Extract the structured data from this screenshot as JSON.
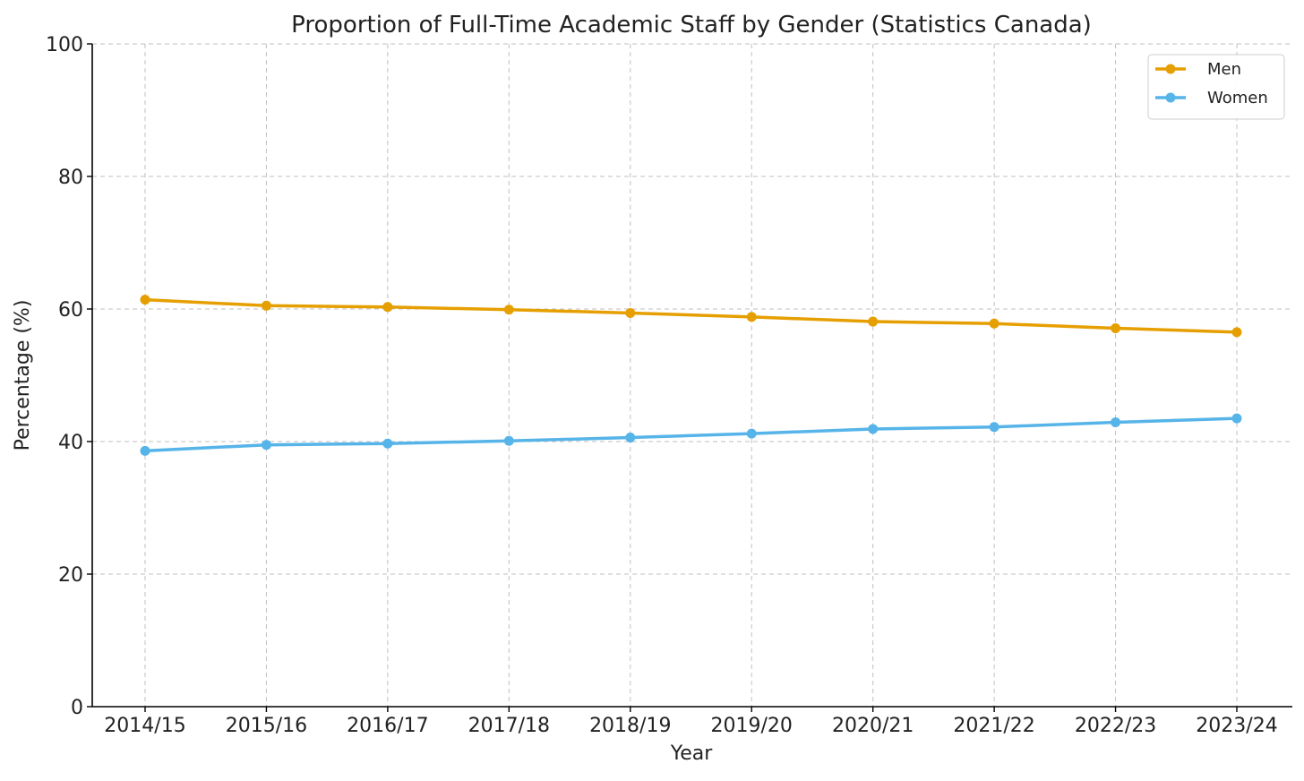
{
  "chart_data": {
    "type": "line",
    "title": "Proportion of Full-Time Academic Staff by Gender (Statistics Canada)",
    "xlabel": "Year",
    "ylabel": "Percentage (%)",
    "categories": [
      "2014/15",
      "2015/16",
      "2016/17",
      "2017/18",
      "2018/19",
      "2019/20",
      "2020/21",
      "2021/22",
      "2022/23",
      "2023/24"
    ],
    "ylim": [
      0,
      100
    ],
    "yticks": [
      0,
      20,
      40,
      60,
      80,
      100
    ],
    "grid": true,
    "legend_position": "top-right",
    "series": [
      {
        "name": "Men",
        "color": "#E69F00",
        "marker": "circle",
        "values": [
          61.4,
          60.5,
          60.3,
          59.9,
          59.4,
          58.8,
          58.1,
          57.8,
          57.1,
          56.5
        ]
      },
      {
        "name": "Women",
        "color": "#56B4E9",
        "marker": "circle",
        "values": [
          38.6,
          39.5,
          39.7,
          40.1,
          40.6,
          41.2,
          41.9,
          42.2,
          42.9,
          43.5
        ]
      }
    ]
  }
}
